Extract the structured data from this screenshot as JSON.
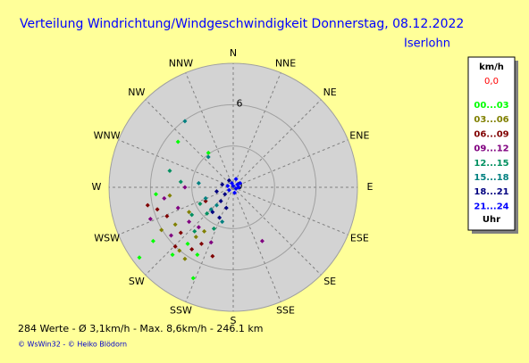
{
  "chart_data": {
    "type": "polar-scatter",
    "title": "Verteilung Windrichtung/Windgeschwindigkeit  Donnerstag, 08.12.2022",
    "subtitle": "Iserlohn",
    "directions": [
      "N",
      "NNE",
      "NE",
      "ENE",
      "E",
      "ESE",
      "SE",
      "SSE",
      "S",
      "SSW",
      "SW",
      "WSW",
      "W",
      "WNW",
      "NW",
      "NNW"
    ],
    "rlim": [
      0,
      9
    ],
    "rticks": [
      0,
      6
    ],
    "rings": [
      3,
      6
    ],
    "legend_title": "km/h",
    "legend_value": "0,0",
    "legend_footer": "Uhr",
    "summary": "284 Werte   -   Ø 3,1km/h   -   Max. 8,6km/h   -   246.1 km",
    "copyright": "© WsWin32  -  © Heiko Blödorn",
    "series": [
      {
        "name": "00...03",
        "color": "#00ff00",
        "x": [
          -6.8,
          -4.4,
          -3.3,
          -2.6,
          -5.8,
          -5.6,
          -2.9,
          -1.8,
          -4.0
        ],
        "values": [
          -5.1,
          -4.9,
          -4.1,
          -4.9,
          -3.9,
          -0.5,
          -6.6,
          2.5,
          3.3
        ]
      },
      {
        "name": "03...06",
        "color": "#808000",
        "x": [
          -3.2,
          -4.2,
          -2.7,
          -5.2,
          -3.9,
          -2.1,
          -4.6,
          -3.5
        ],
        "values": [
          -1.8,
          -2.7,
          -3.6,
          -3.1,
          -4.6,
          -3.2,
          -0.6,
          -5.2
        ]
      },
      {
        "name": "06...09",
        "color": "#800000",
        "x": [
          -3.8,
          -4.8,
          -2.3,
          -5.5,
          -3.0,
          -1.5,
          -6.2,
          -4.2,
          -2.0
        ],
        "values": [
          -3.3,
          -2.1,
          -4.1,
          -1.6,
          -4.5,
          -5.0,
          -1.3,
          -4.3,
          -1.0
        ]
      },
      {
        "name": "09...12",
        "color": "#800080",
        "x": [
          -3.2,
          -4.0,
          -2.5,
          -5.0,
          -3.5,
          -1.6,
          -6.0,
          2.1,
          -4.5
        ],
        "values": [
          -2.5,
          -1.5,
          -2.9,
          -0.8,
          0.0,
          -4.0,
          -2.3,
          -3.9,
          -3.5
        ]
      },
      {
        "name": "12...15",
        "color": "#009060",
        "x": [
          -2.4,
          -3.0,
          -1.4,
          -3.8,
          -2.8,
          -4.6,
          -1.9
        ],
        "values": [
          -1.2,
          -2.0,
          -3.0,
          0.4,
          -3.2,
          1.2,
          -1.9
        ]
      },
      {
        "name": "15...18",
        "color": "#008080",
        "x": [
          -1.2,
          -2.0,
          -0.8,
          -1.6,
          -2.5,
          -3.5,
          -1.8
        ],
        "values": [
          -1.3,
          -0.8,
          -2.5,
          -1.6,
          0.3,
          4.8,
          2.2
        ]
      },
      {
        "name": "18...21",
        "color": "#000080",
        "x": [
          -0.6,
          -0.9,
          -1.2,
          -0.5,
          -1.5,
          -0.3,
          -1.0,
          -0.8
        ],
        "values": [
          -0.5,
          -1.0,
          -0.3,
          -1.5,
          -1.8,
          0.5,
          -2.2,
          0.2
        ]
      },
      {
        "name": "21...24",
        "color": "#0000ff",
        "x": [
          0.3,
          0.2,
          -0.1,
          0.4,
          0.1,
          -0.3,
          0.2,
          0.5,
          -0.4,
          0.0
        ],
        "values": [
          0.2,
          -0.1,
          0.3,
          0.0,
          -0.4,
          -0.2,
          0.6,
          0.3,
          0.1,
          0.1
        ]
      }
    ]
  }
}
